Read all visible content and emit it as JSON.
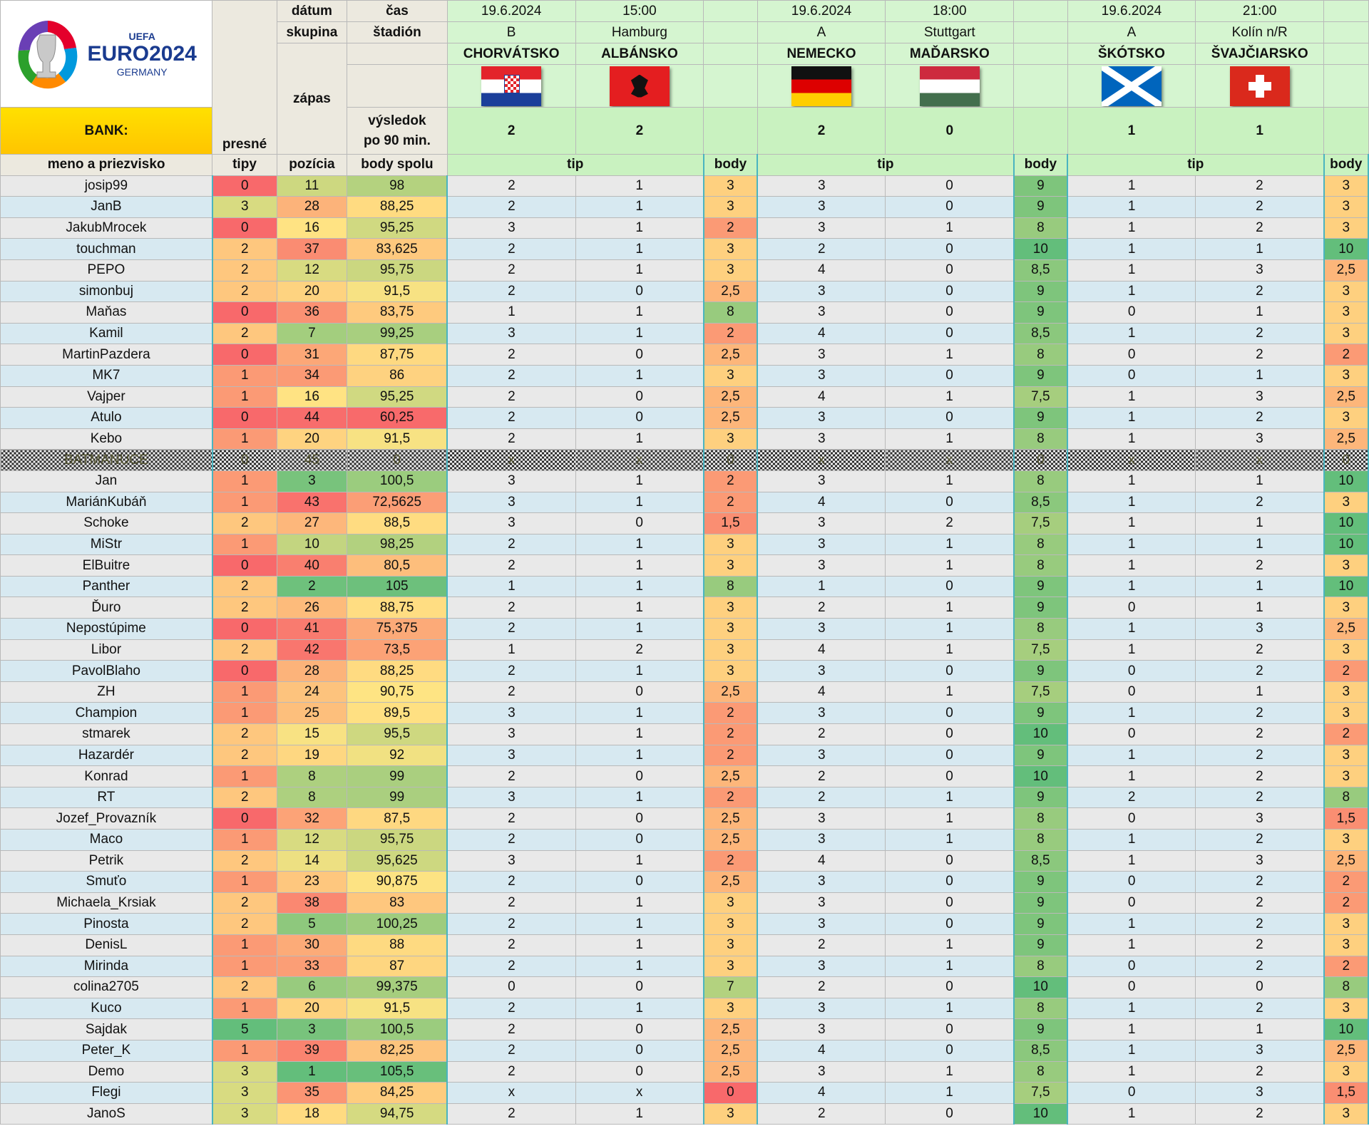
{
  "logo": {
    "uefa": "UEFA",
    "euro": "EURO2024",
    "country": "GERMANY"
  },
  "labels": {
    "bank": "BANK:",
    "datum": "dátum",
    "cas": "čas",
    "skupina": "skupina",
    "stadion": "štadión",
    "zapas": "zápas",
    "vysledok": "výsledok",
    "po90": "po 90 min.",
    "presne": "presné",
    "tipy": "tipy",
    "meno": "meno a priezvisko",
    "pozicia": "pozícia",
    "body_spolu": "body spolu",
    "tip": "tip",
    "body": "body"
  },
  "matches": [
    {
      "date": "19.6.2024",
      "time": "15:00",
      "group": "B",
      "stadium": "Hamburg",
      "home": "CHORVÁTSKO",
      "away": "ALBÁNSKO",
      "home_flag": "croatia-flag",
      "away_flag": "albania-flag",
      "home_score": "2",
      "away_score": "2"
    },
    {
      "date": "19.6.2024",
      "time": "18:00",
      "group": "A",
      "stadium": "Stuttgart",
      "home": "NEMECKO",
      "away": "MAĎARSKO",
      "home_flag": "germany-flag",
      "away_flag": "hungary-flag",
      "home_score": "2",
      "away_score": "0"
    },
    {
      "date": "19.6.2024",
      "time": "21:00",
      "group": "A",
      "stadium": "Kolín n/R",
      "home": "ŠKÓTSKO",
      "away": "ŠVAJČIARSKO",
      "home_flag": "scotland-flag",
      "away_flag": "switzerland-flag",
      "home_score": "1",
      "away_score": "1"
    }
  ],
  "colors": {
    "header_green": "#d5f5d0",
    "score_green": "#1f6b20",
    "row_grey": "#e9e9e9",
    "row_blue": "#d7e9f1",
    "bank_yellow": "#ffd400",
    "box_border": "#4ab4c0"
  },
  "rows": [
    [
      "josip99",
      "0",
      "11",
      "98",
      "2",
      "1",
      "3",
      "3",
      "0",
      "9",
      "1",
      "2",
      "3"
    ],
    [
      "JanB",
      "3",
      "28",
      "88,25",
      "2",
      "1",
      "3",
      "3",
      "0",
      "9",
      "1",
      "2",
      "3"
    ],
    [
      "JakubMrocek",
      "0",
      "16",
      "95,25",
      "3",
      "1",
      "2",
      "3",
      "1",
      "8",
      "1",
      "2",
      "3"
    ],
    [
      "touchman",
      "2",
      "37",
      "83,625",
      "2",
      "1",
      "3",
      "2",
      "0",
      "10",
      "1",
      "1",
      "10"
    ],
    [
      "PEPO",
      "2",
      "12",
      "95,75",
      "2",
      "1",
      "3",
      "4",
      "0",
      "8,5",
      "1",
      "3",
      "2,5"
    ],
    [
      "simonbuj",
      "2",
      "20",
      "91,5",
      "2",
      "0",
      "2,5",
      "3",
      "0",
      "9",
      "1",
      "2",
      "3"
    ],
    [
      "Maňas",
      "0",
      "36",
      "83,75",
      "1",
      "1",
      "8",
      "3",
      "0",
      "9",
      "0",
      "1",
      "3"
    ],
    [
      "Kamil",
      "2",
      "7",
      "99,25",
      "3",
      "1",
      "2",
      "4",
      "0",
      "8,5",
      "1",
      "2",
      "3"
    ],
    [
      "MartinPazdera",
      "0",
      "31",
      "87,75",
      "2",
      "0",
      "2,5",
      "3",
      "1",
      "8",
      "0",
      "2",
      "2"
    ],
    [
      "MK7",
      "1",
      "34",
      "86",
      "2",
      "1",
      "3",
      "3",
      "0",
      "9",
      "0",
      "1",
      "3"
    ],
    [
      "Vajper",
      "1",
      "16",
      "95,25",
      "2",
      "0",
      "2,5",
      "4",
      "1",
      "7,5",
      "1",
      "3",
      "2,5"
    ],
    [
      "Atulo",
      "0",
      "44",
      "60,25",
      "2",
      "0",
      "2,5",
      "3",
      "0",
      "9",
      "1",
      "2",
      "3"
    ],
    [
      "Kebo",
      "1",
      "20",
      "91,5",
      "2",
      "1",
      "3",
      "3",
      "1",
      "8",
      "1",
      "3",
      "2,5"
    ],
    [
      "BATMANUCE",
      "0",
      "45",
      "0",
      "x",
      "x",
      "0",
      "x",
      "x",
      "0",
      "x",
      "x",
      "0"
    ],
    [
      "Jan",
      "1",
      "3",
      "100,5",
      "3",
      "1",
      "2",
      "3",
      "1",
      "8",
      "1",
      "1",
      "10"
    ],
    [
      "MariánKubáň",
      "1",
      "43",
      "72,5625",
      "3",
      "1",
      "2",
      "4",
      "0",
      "8,5",
      "1",
      "2",
      "3"
    ],
    [
      "Schoke",
      "2",
      "27",
      "88,5",
      "3",
      "0",
      "1,5",
      "3",
      "2",
      "7,5",
      "1",
      "1",
      "10"
    ],
    [
      "MiStr",
      "1",
      "10",
      "98,25",
      "2",
      "1",
      "3",
      "3",
      "1",
      "8",
      "1",
      "1",
      "10"
    ],
    [
      "ElBuitre",
      "0",
      "40",
      "80,5",
      "2",
      "1",
      "3",
      "3",
      "1",
      "8",
      "1",
      "2",
      "3"
    ],
    [
      "Panther",
      "2",
      "2",
      "105",
      "1",
      "1",
      "8",
      "1",
      "0",
      "9",
      "1",
      "1",
      "10"
    ],
    [
      "Ďuro",
      "2",
      "26",
      "88,75",
      "2",
      "1",
      "3",
      "2",
      "1",
      "9",
      "0",
      "1",
      "3"
    ],
    [
      "Nepostúpime",
      "0",
      "41",
      "75,375",
      "2",
      "1",
      "3",
      "3",
      "1",
      "8",
      "1",
      "3",
      "2,5"
    ],
    [
      "Libor",
      "2",
      "42",
      "73,5",
      "1",
      "2",
      "3",
      "4",
      "1",
      "7,5",
      "1",
      "2",
      "3"
    ],
    [
      "PavolBlaho",
      "0",
      "28",
      "88,25",
      "2",
      "1",
      "3",
      "3",
      "0",
      "9",
      "0",
      "2",
      "2"
    ],
    [
      "ZH",
      "1",
      "24",
      "90,75",
      "2",
      "0",
      "2,5",
      "4",
      "1",
      "7,5",
      "0",
      "1",
      "3"
    ],
    [
      "Champion",
      "1",
      "25",
      "89,5",
      "3",
      "1",
      "2",
      "3",
      "0",
      "9",
      "1",
      "2",
      "3"
    ],
    [
      "stmarek",
      "2",
      "15",
      "95,5",
      "3",
      "1",
      "2",
      "2",
      "0",
      "10",
      "0",
      "2",
      "2"
    ],
    [
      "Hazardér",
      "2",
      "19",
      "92",
      "3",
      "1",
      "2",
      "3",
      "0",
      "9",
      "1",
      "2",
      "3"
    ],
    [
      "Konrad",
      "1",
      "8",
      "99",
      "2",
      "0",
      "2,5",
      "2",
      "0",
      "10",
      "1",
      "2",
      "3"
    ],
    [
      "RT",
      "2",
      "8",
      "99",
      "3",
      "1",
      "2",
      "2",
      "1",
      "9",
      "2",
      "2",
      "8"
    ],
    [
      "Jozef_Provazník",
      "0",
      "32",
      "87,5",
      "2",
      "0",
      "2,5",
      "3",
      "1",
      "8",
      "0",
      "3",
      "1,5"
    ],
    [
      "Maco",
      "1",
      "12",
      "95,75",
      "2",
      "0",
      "2,5",
      "3",
      "1",
      "8",
      "1",
      "2",
      "3"
    ],
    [
      "Petrik",
      "2",
      "14",
      "95,625",
      "3",
      "1",
      "2",
      "4",
      "0",
      "8,5",
      "1",
      "3",
      "2,5"
    ],
    [
      "Smuťo",
      "1",
      "23",
      "90,875",
      "2",
      "0",
      "2,5",
      "3",
      "0",
      "9",
      "0",
      "2",
      "2"
    ],
    [
      "Michaela_Krsiak",
      "2",
      "38",
      "83",
      "2",
      "1",
      "3",
      "3",
      "0",
      "9",
      "0",
      "2",
      "2"
    ],
    [
      "Pinosta",
      "2",
      "5",
      "100,25",
      "2",
      "1",
      "3",
      "3",
      "0",
      "9",
      "1",
      "2",
      "3"
    ],
    [
      "DenisL",
      "1",
      "30",
      "88",
      "2",
      "1",
      "3",
      "2",
      "1",
      "9",
      "1",
      "2",
      "3"
    ],
    [
      "Mirinda",
      "1",
      "33",
      "87",
      "2",
      "1",
      "3",
      "3",
      "1",
      "8",
      "0",
      "2",
      "2"
    ],
    [
      "colina2705",
      "2",
      "6",
      "99,375",
      "0",
      "0",
      "7",
      "2",
      "0",
      "10",
      "0",
      "0",
      "8"
    ],
    [
      "Kuco",
      "1",
      "20",
      "91,5",
      "2",
      "1",
      "3",
      "3",
      "1",
      "8",
      "1",
      "2",
      "3"
    ],
    [
      "Sajdak",
      "5",
      "3",
      "100,5",
      "2",
      "0",
      "2,5",
      "3",
      "0",
      "9",
      "1",
      "1",
      "10"
    ],
    [
      "Peter_K",
      "1",
      "39",
      "82,25",
      "2",
      "0",
      "2,5",
      "4",
      "0",
      "8,5",
      "1",
      "3",
      "2,5"
    ],
    [
      "Demo",
      "3",
      "1",
      "105,5",
      "2",
      "0",
      "2,5",
      "3",
      "1",
      "8",
      "1",
      "2",
      "3"
    ],
    [
      "Flegi",
      "3",
      "35",
      "84,25",
      "x",
      "x",
      "0",
      "4",
      "1",
      "7,5",
      "0",
      "3",
      "1,5"
    ],
    [
      "JanoS",
      "3",
      "18",
      "94,75",
      "2",
      "1",
      "3",
      "2",
      "0",
      "10",
      "1",
      "2",
      "3"
    ]
  ]
}
